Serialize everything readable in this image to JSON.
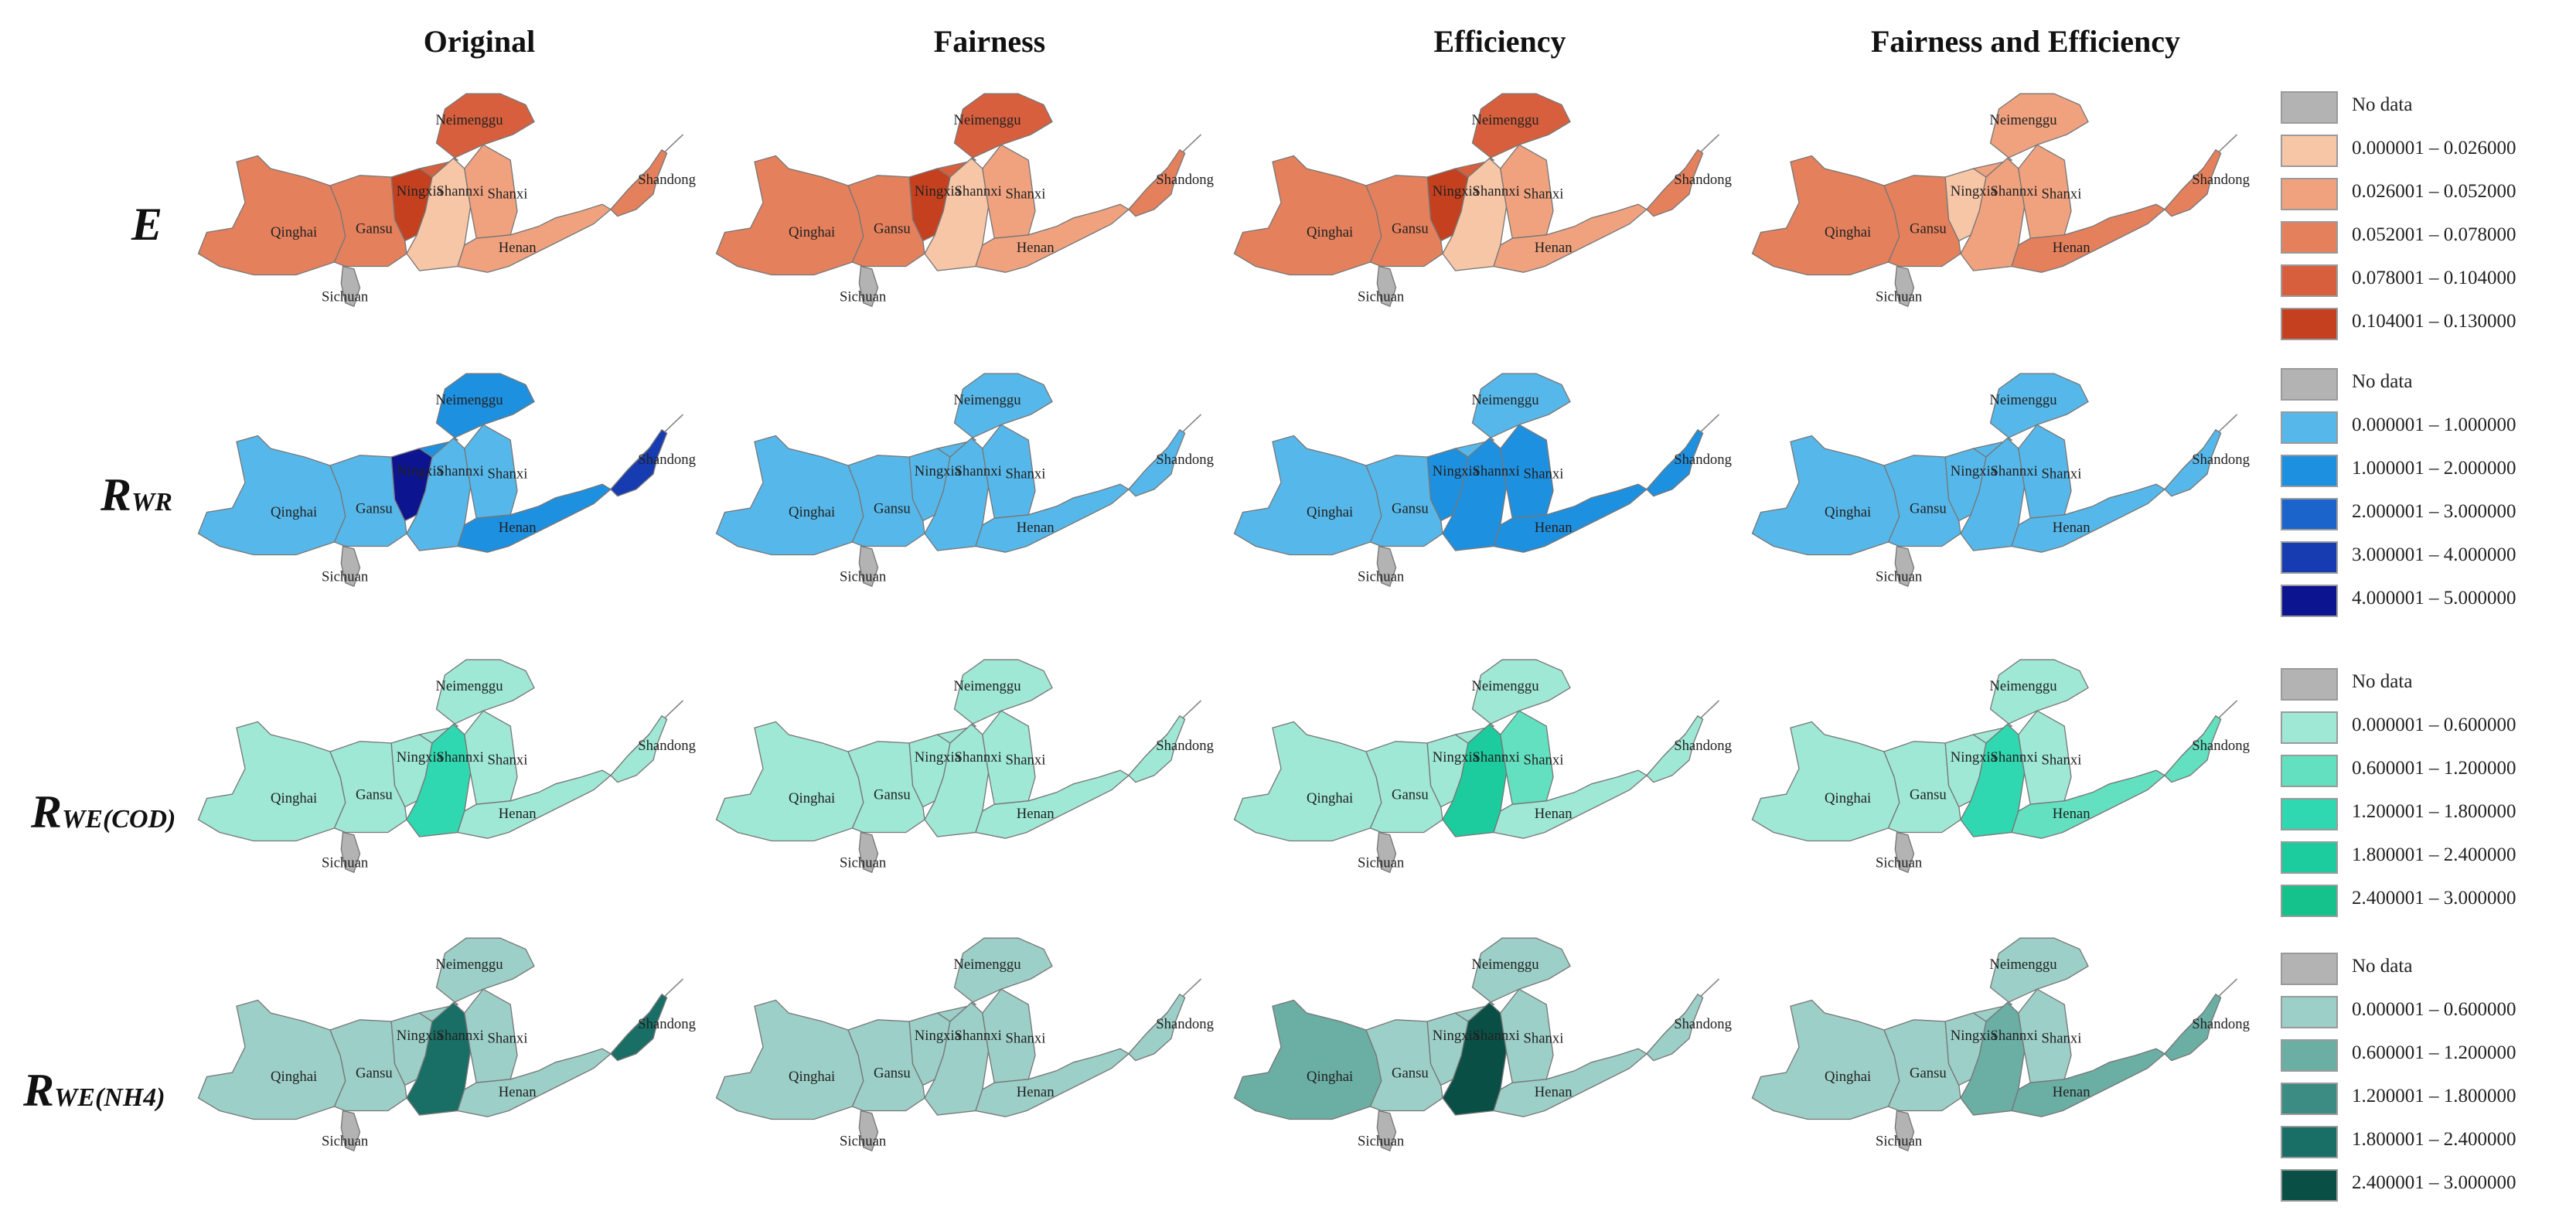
{
  "columns": [
    "Original",
    "Fairness",
    "Efficiency",
    "Fairness and Efficiency"
  ],
  "province_labels": {
    "Neimenggu": "Neimenggu",
    "Ningxia": "Ningxia",
    "Shannxi": "Shannxi",
    "Shanxi": "Shanxi",
    "Shandong": "Shandong",
    "Qinghai": "Qinghai",
    "Gansu": "Gansu",
    "Henan": "Henan",
    "Sichuan": "Sichuan"
  },
  "no_data_label": "No data",
  "no_data_color": "#b3b3b3",
  "rows": [
    {
      "id": "E",
      "label_main": "E",
      "label_sub": "",
      "legend": [
        {
          "range": "0.000001 – 0.026000",
          "color": "#f7c6a6"
        },
        {
          "range": "0.026001 – 0.052000",
          "color": "#f0a27f"
        },
        {
          "range": "0.052001 – 0.078000",
          "color": "#e5805c"
        },
        {
          "range": "0.078001 – 0.104000",
          "color": "#d85f3d"
        },
        {
          "range": "0.104001 – 0.130000",
          "color": "#c5401f"
        }
      ],
      "maps": [
        {
          "Neimenggu": 4,
          "Ningxia": 5,
          "Shannxi": 1,
          "Shanxi": 2,
          "Shandong": 3,
          "Qinghai": 3,
          "Gansu": 3,
          "Henan": 2
        },
        {
          "Neimenggu": 4,
          "Ningxia": 5,
          "Shannxi": 1,
          "Shanxi": 2,
          "Shandong": 3,
          "Qinghai": 3,
          "Gansu": 3,
          "Henan": 2
        },
        {
          "Neimenggu": 4,
          "Ningxia": 5,
          "Shannxi": 1,
          "Shanxi": 2,
          "Shandong": 3,
          "Qinghai": 3,
          "Gansu": 3,
          "Henan": 2
        },
        {
          "Neimenggu": 2,
          "Ningxia": 1,
          "Shannxi": 2,
          "Shanxi": 2,
          "Shandong": 3,
          "Qinghai": 3,
          "Gansu": 3,
          "Henan": 3
        }
      ]
    },
    {
      "id": "RWR",
      "label_main": "R",
      "label_sub": "WR",
      "legend": [
        {
          "range": "0.000001 – 1.000000",
          "color": "#56b8ea"
        },
        {
          "range": "1.000001 – 2.000000",
          "color": "#1e90e0"
        },
        {
          "range": "2.000001 – 3.000000",
          "color": "#1a64cc"
        },
        {
          "range": "3.000001 – 4.000000",
          "color": "#173bb0"
        },
        {
          "range": "4.000001 – 5.000000",
          "color": "#0d1490"
        }
      ],
      "maps": [
        {
          "Neimenggu": 2,
          "Ningxia": 5,
          "Shannxi": 1,
          "Shanxi": 1,
          "Shandong": 4,
          "Qinghai": 1,
          "Gansu": 1,
          "Henan": 2
        },
        {
          "Neimenggu": 1,
          "Ningxia": 1,
          "Shannxi": 1,
          "Shanxi": 1,
          "Shandong": 1,
          "Qinghai": 1,
          "Gansu": 1,
          "Henan": 1
        },
        {
          "Neimenggu": 1,
          "Ningxia": 2,
          "Shannxi": 2,
          "Shanxi": 2,
          "Shandong": 2,
          "Qinghai": 1,
          "Gansu": 1,
          "Henan": 2
        },
        {
          "Neimenggu": 1,
          "Ningxia": 1,
          "Shannxi": 1,
          "Shanxi": 1,
          "Shandong": 1,
          "Qinghai": 1,
          "Gansu": 1,
          "Henan": 1
        }
      ]
    },
    {
      "id": "RWECOD",
      "label_main": "R",
      "label_sub": "WE(COD)",
      "legend": [
        {
          "range": "0.000001 – 0.600000",
          "color": "#9fe8d6"
        },
        {
          "range": "0.600001 – 1.200000",
          "color": "#62e0c0"
        },
        {
          "range": "1.200001 – 1.800000",
          "color": "#2fd8b0"
        },
        {
          "range": "1.800001 – 2.400000",
          "color": "#1ccc9e"
        },
        {
          "range": "2.400001 – 3.000000",
          "color": "#16c28c"
        }
      ],
      "maps": [
        {
          "Neimenggu": 1,
          "Ningxia": 1,
          "Shannxi": 3,
          "Shanxi": 1,
          "Shandong": 1,
          "Qinghai": 1,
          "Gansu": 1,
          "Henan": 1
        },
        {
          "Neimenggu": 1,
          "Ningxia": 1,
          "Shannxi": 1,
          "Shanxi": 1,
          "Shandong": 1,
          "Qinghai": 1,
          "Gansu": 1,
          "Henan": 1
        },
        {
          "Neimenggu": 1,
          "Ningxia": 1,
          "Shannxi": 4,
          "Shanxi": 2,
          "Shandong": 1,
          "Qinghai": 1,
          "Gansu": 1,
          "Henan": 1
        },
        {
          "Neimenggu": 1,
          "Ningxia": 1,
          "Shannxi": 3,
          "Shanxi": 1,
          "Shandong": 2,
          "Qinghai": 1,
          "Gansu": 1,
          "Henan": 2
        }
      ]
    },
    {
      "id": "RWENH4",
      "label_main": "R",
      "label_sub": "WE(NH4)",
      "legend": [
        {
          "range": "0.000001 – 0.600000",
          "color": "#9ccfc7"
        },
        {
          "range": "0.600001 – 1.200000",
          "color": "#6aaea4"
        },
        {
          "range": "1.200001 – 1.800000",
          "color": "#3c8c83"
        },
        {
          "range": "1.800001 – 2.400000",
          "color": "#196e65"
        },
        {
          "range": "2.400001 – 3.000000",
          "color": "#0a4f45"
        }
      ],
      "maps": [
        {
          "Neimenggu": 1,
          "Ningxia": 1,
          "Shannxi": 4,
          "Shanxi": 1,
          "Shandong": 4,
          "Qinghai": 1,
          "Gansu": 1,
          "Henan": 1
        },
        {
          "Neimenggu": 1,
          "Ningxia": 1,
          "Shannxi": 1,
          "Shanxi": 1,
          "Shandong": 1,
          "Qinghai": 1,
          "Gansu": 1,
          "Henan": 1
        },
        {
          "Neimenggu": 1,
          "Ningxia": 1,
          "Shannxi": 5,
          "Shanxi": 1,
          "Shandong": 1,
          "Qinghai": 2,
          "Gansu": 1,
          "Henan": 1
        },
        {
          "Neimenggu": 1,
          "Ningxia": 1,
          "Shannxi": 2,
          "Shanxi": 1,
          "Shandong": 2,
          "Qinghai": 1,
          "Gansu": 1,
          "Henan": 2
        }
      ]
    }
  ]
}
